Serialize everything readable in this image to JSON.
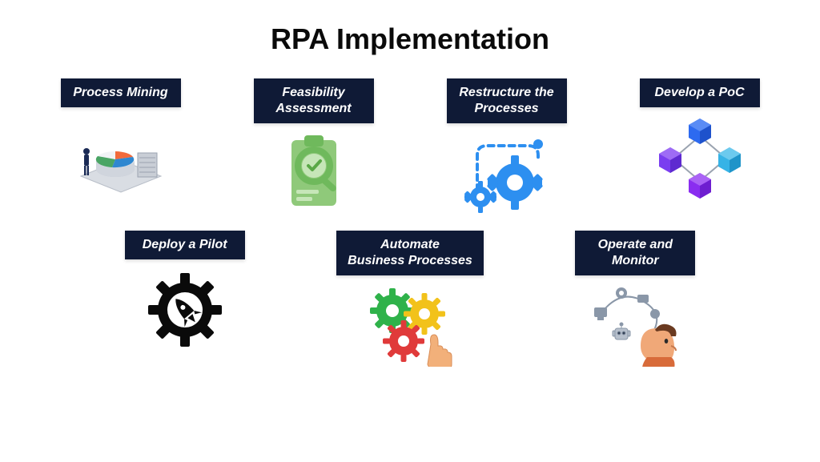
{
  "title": "RPA Implementation",
  "colors": {
    "background": "#ffffff",
    "title_text": "#0a0a0a",
    "label_bg": "#0f1a36",
    "label_text": "#ffffff"
  },
  "typography": {
    "title_fontsize": 36,
    "label_fontsize": 16,
    "label_style": "italic bold"
  },
  "layout": {
    "rows": 2,
    "row1_count": 4,
    "row2_count": 3
  },
  "steps": [
    {
      "id": "process-mining",
      "label": "Process Mining",
      "icon": "isometric-chart",
      "icon_colors": {
        "platform": "#d9dde3",
        "cyl_top": "#f1f3f6",
        "slice1": "#f26a3b",
        "slice2": "#2f87d0",
        "slice3": "#4aa564",
        "servers": "#c9ced6",
        "person": "#1a2a55"
      }
    },
    {
      "id": "feasibility",
      "label": "Feasibility\nAssessment",
      "icon": "clipboard-check",
      "icon_colors": {
        "board": "#8fc97a",
        "accent": "#6fb95c",
        "glass": "#9fd28c",
        "tick": "#ffffff"
      }
    },
    {
      "id": "restructure",
      "label": "Restructure the\nProcesses",
      "icon": "gears-path",
      "icon_colors": {
        "gear": "#2d8ff0",
        "path": "#2d8ff0"
      }
    },
    {
      "id": "poc",
      "label": "Develop a PoC",
      "icon": "cubes-network",
      "icon_colors": {
        "cube1": "#2d6af0",
        "cube2": "#7a3df0",
        "cube3": "#36b3e6",
        "cube4": "#8a2df0",
        "link": "#9aa3b0"
      }
    },
    {
      "id": "pilot",
      "label": "Deploy a Pilot",
      "icon": "gear-rocket",
      "icon_colors": {
        "gear": "#0a0a0a",
        "rocket": "#0a0a0a"
      }
    },
    {
      "id": "automate",
      "label": "Automate\nBusiness Processes",
      "icon": "gears-hand",
      "icon_colors": {
        "g1": "#2fb24a",
        "g2": "#f2c21a",
        "g3": "#e03a3a",
        "hand": "#f2b07a"
      }
    },
    {
      "id": "operate",
      "label": "Operate and\nMonitor",
      "icon": "person-monitor",
      "icon_colors": {
        "skin": "#f0a878",
        "hair": "#6a3a20",
        "shirt": "#d86b3a",
        "device": "#8a97a8",
        "accent": "#334055"
      }
    }
  ]
}
